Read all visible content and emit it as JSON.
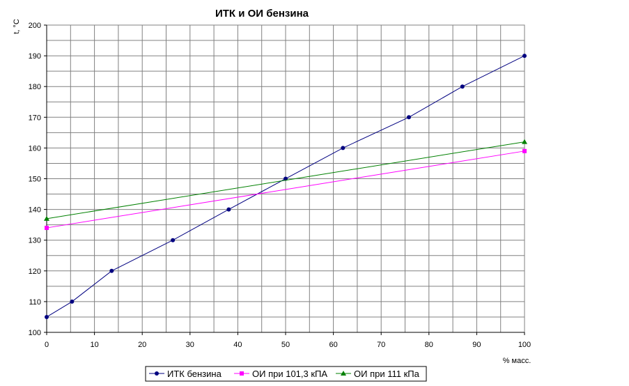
{
  "chart_data": {
    "type": "line",
    "title": "ИТК и ОИ бензина",
    "xlabel": "% масс.",
    "ylabel": "t, °C",
    "xlim": [
      0,
      100
    ],
    "ylim": [
      100,
      200
    ],
    "x_ticks": [
      "0",
      "10",
      "20",
      "30",
      "40",
      "50",
      "60",
      "70",
      "80",
      "90",
      "100"
    ],
    "y_ticks": [
      "100",
      "110",
      "120",
      "130",
      "140",
      "150",
      "160",
      "170",
      "180",
      "190",
      "200"
    ],
    "grid": true,
    "legend_position": "bottom",
    "series": [
      {
        "name": "ИТК бензина",
        "color": "#000080",
        "marker": "circle",
        "x": [
          0,
          5.3,
          13.6,
          26.4,
          38.1,
          50,
          62,
          75.8,
          87,
          100
        ],
        "y": [
          105,
          110,
          120,
          130,
          140,
          150,
          160,
          170,
          180,
          190
        ]
      },
      {
        "name": "ОИ при 101,3 кПА",
        "color": "#ff00ff",
        "marker": "square",
        "x": [
          0,
          100
        ],
        "y": [
          134,
          159
        ]
      },
      {
        "name": "ОИ при 111 кПа",
        "color": "#008000",
        "marker": "triangle",
        "x": [
          0,
          100
        ],
        "y": [
          137,
          162
        ]
      }
    ]
  }
}
